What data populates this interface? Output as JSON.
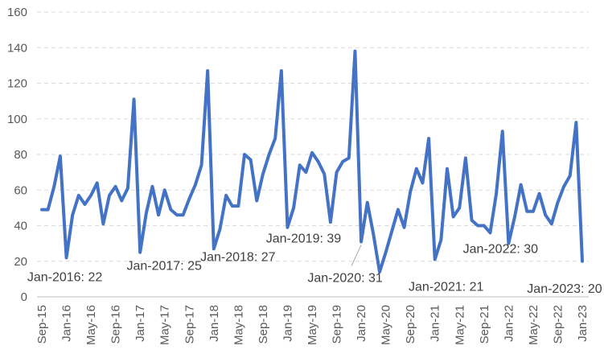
{
  "chart_data": {
    "type": "line",
    "ylim": [
      0,
      160
    ],
    "yticks": [
      0,
      20,
      40,
      60,
      80,
      100,
      120,
      140,
      160
    ],
    "grid": "horizontal dashed",
    "line_color": "#4472C4",
    "x_tick_labels": [
      "Sep-15",
      "Jan-16",
      "May-16",
      "Sep-16",
      "Jan-17",
      "May-17",
      "Sep-17",
      "Jan-18",
      "May-18",
      "Sep-18",
      "Jan-19",
      "May-19",
      "Sep-19",
      "Jan-20",
      "May-20",
      "Sep-20",
      "Jan-21",
      "May-21",
      "Sep-21",
      "Jan-22",
      "May-22",
      "Sep-22",
      "Jan-23"
    ],
    "x_start": "Sep-15",
    "x_end": "Jan-23",
    "values": [
      49,
      49,
      62,
      79,
      22,
      46,
      57,
      52,
      57,
      64,
      41,
      57,
      62,
      54,
      61,
      111,
      25,
      47,
      62,
      46,
      60,
      49,
      46,
      46,
      55,
      63,
      74,
      127,
      27,
      38,
      57,
      51,
      51,
      80,
      77,
      54,
      69,
      80,
      89,
      127,
      39,
      50,
      74,
      70,
      81,
      76,
      69,
      42,
      70,
      76,
      78,
      138,
      31,
      53,
      35,
      14,
      25,
      37,
      49,
      39,
      59,
      72,
      64,
      89,
      21,
      32,
      72,
      45,
      50,
      78,
      43,
      40,
      40,
      36,
      58,
      93,
      30,
      45,
      63,
      48,
      48,
      58,
      46,
      41,
      53,
      62,
      68,
      98,
      20
    ],
    "data_labels": [
      {
        "date": "Jan-16",
        "value": 22,
        "text": "Jan-2016: 22"
      },
      {
        "date": "Jan-17",
        "value": 25,
        "text": "Jan-2017: 25"
      },
      {
        "date": "Jan-18",
        "value": 27,
        "text": "Jan-2018: 27"
      },
      {
        "date": "Jan-19",
        "value": 39,
        "text": "Jan-2019: 39"
      },
      {
        "date": "Jan-20",
        "value": 31,
        "text": "Jan-2020: 31"
      },
      {
        "date": "Jan-21",
        "value": 21,
        "text": "Jan-2021: 21"
      },
      {
        "date": "Jan-22",
        "value": 30,
        "text": "Jan-2022: 30"
      },
      {
        "date": "Jan-23",
        "value": 20,
        "text": "Jan-2023: 20"
      }
    ]
  }
}
